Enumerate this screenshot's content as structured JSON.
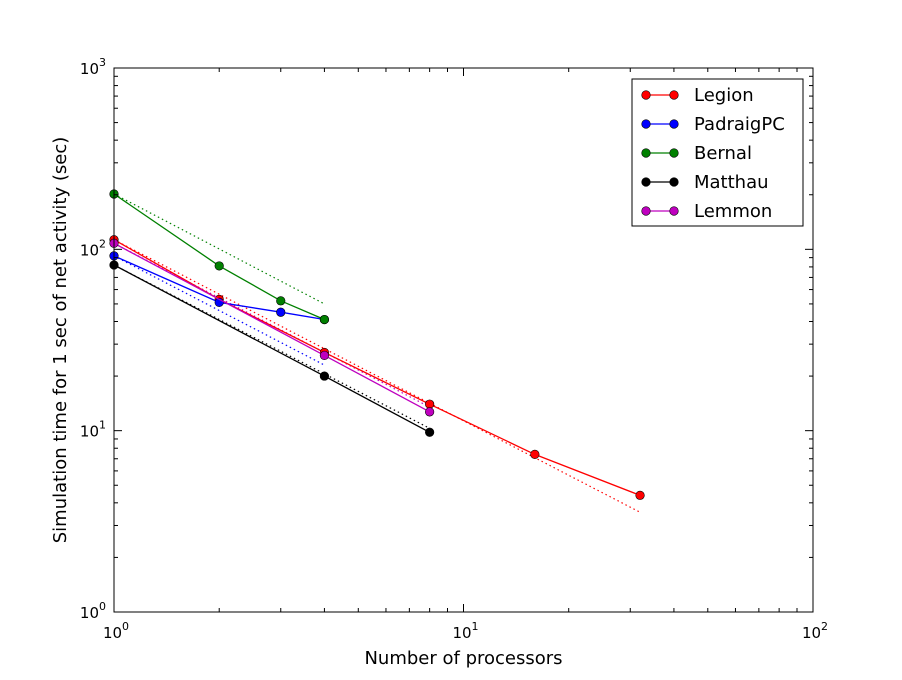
{
  "chart_data": {
    "type": "line",
    "xlabel": "Number of processors",
    "ylabel": "Simulation time for 1 sec of net activity (sec)",
    "xscale": "log",
    "yscale": "log",
    "xlim": [
      1,
      100
    ],
    "ylim": [
      1,
      1000
    ],
    "x_ticks": [
      {
        "value": 1,
        "base": "10",
        "exp": "0"
      },
      {
        "value": 10,
        "base": "10",
        "exp": "1"
      },
      {
        "value": 100,
        "base": "10",
        "exp": "2"
      }
    ],
    "y_ticks": [
      {
        "value": 1,
        "base": "10",
        "exp": "0"
      },
      {
        "value": 10,
        "base": "10",
        "exp": "1"
      },
      {
        "value": 100,
        "base": "10",
        "exp": "2"
      },
      {
        "value": 1000,
        "base": "10",
        "exp": "3"
      }
    ],
    "grid": false,
    "legend_position": "top-right",
    "series": [
      {
        "name": "Legion",
        "color": "#ff0000",
        "x": [
          1,
          2,
          4,
          8,
          16,
          32
        ],
        "y": [
          113,
          53,
          27,
          14,
          7.4,
          4.4
        ],
        "ideal": {
          "x": [
            1,
            32
          ],
          "y": [
            113,
            3.55
          ]
        }
      },
      {
        "name": "PadraigPC",
        "color": "#0000ff",
        "x": [
          1,
          2,
          3,
          4
        ],
        "y": [
          92,
          51,
          45,
          41
        ],
        "ideal": {
          "x": [
            1,
            4
          ],
          "y": [
            92,
            23
          ]
        }
      },
      {
        "name": "Bernal",
        "color": "#008000",
        "x": [
          1,
          2,
          3,
          4
        ],
        "y": [
          202,
          81,
          52,
          41
        ],
        "ideal": {
          "x": [
            1,
            4
          ],
          "y": [
            202,
            50
          ]
        }
      },
      {
        "name": "Matthau",
        "color": "#000000",
        "x": [
          1,
          4,
          8
        ],
        "y": [
          82,
          20,
          9.8
        ],
        "ideal": {
          "x": [
            1,
            8
          ],
          "y": [
            82,
            10.3
          ]
        }
      },
      {
        "name": "Lemmon",
        "color": "#bf00bf",
        "x": [
          1,
          4,
          8
        ],
        "y": [
          108,
          26,
          12.7
        ],
        "ideal": {
          "x": [
            1,
            8
          ],
          "y": [
            108,
            13.5
          ]
        }
      }
    ]
  }
}
